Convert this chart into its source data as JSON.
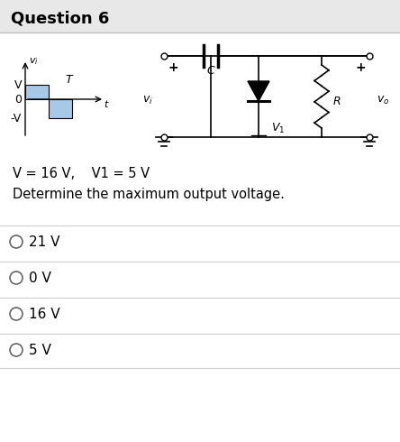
{
  "title": "Question 6",
  "title_bg_color": "#e8e8e8",
  "bg_color": "#ffffff",
  "text_color": "#000000",
  "question_text": "V = 16 V,    V1 = 5 V",
  "determine_text": "Determine the maximum output voltage.",
  "options": [
    "21 V",
    "0 V",
    "16 V",
    "5 V"
  ],
  "rect_color": "#a8c8e8",
  "line_color": "#000000",
  "option_separator_color": "#d0d0d0",
  "header_separator_color": "#c0c0c0"
}
